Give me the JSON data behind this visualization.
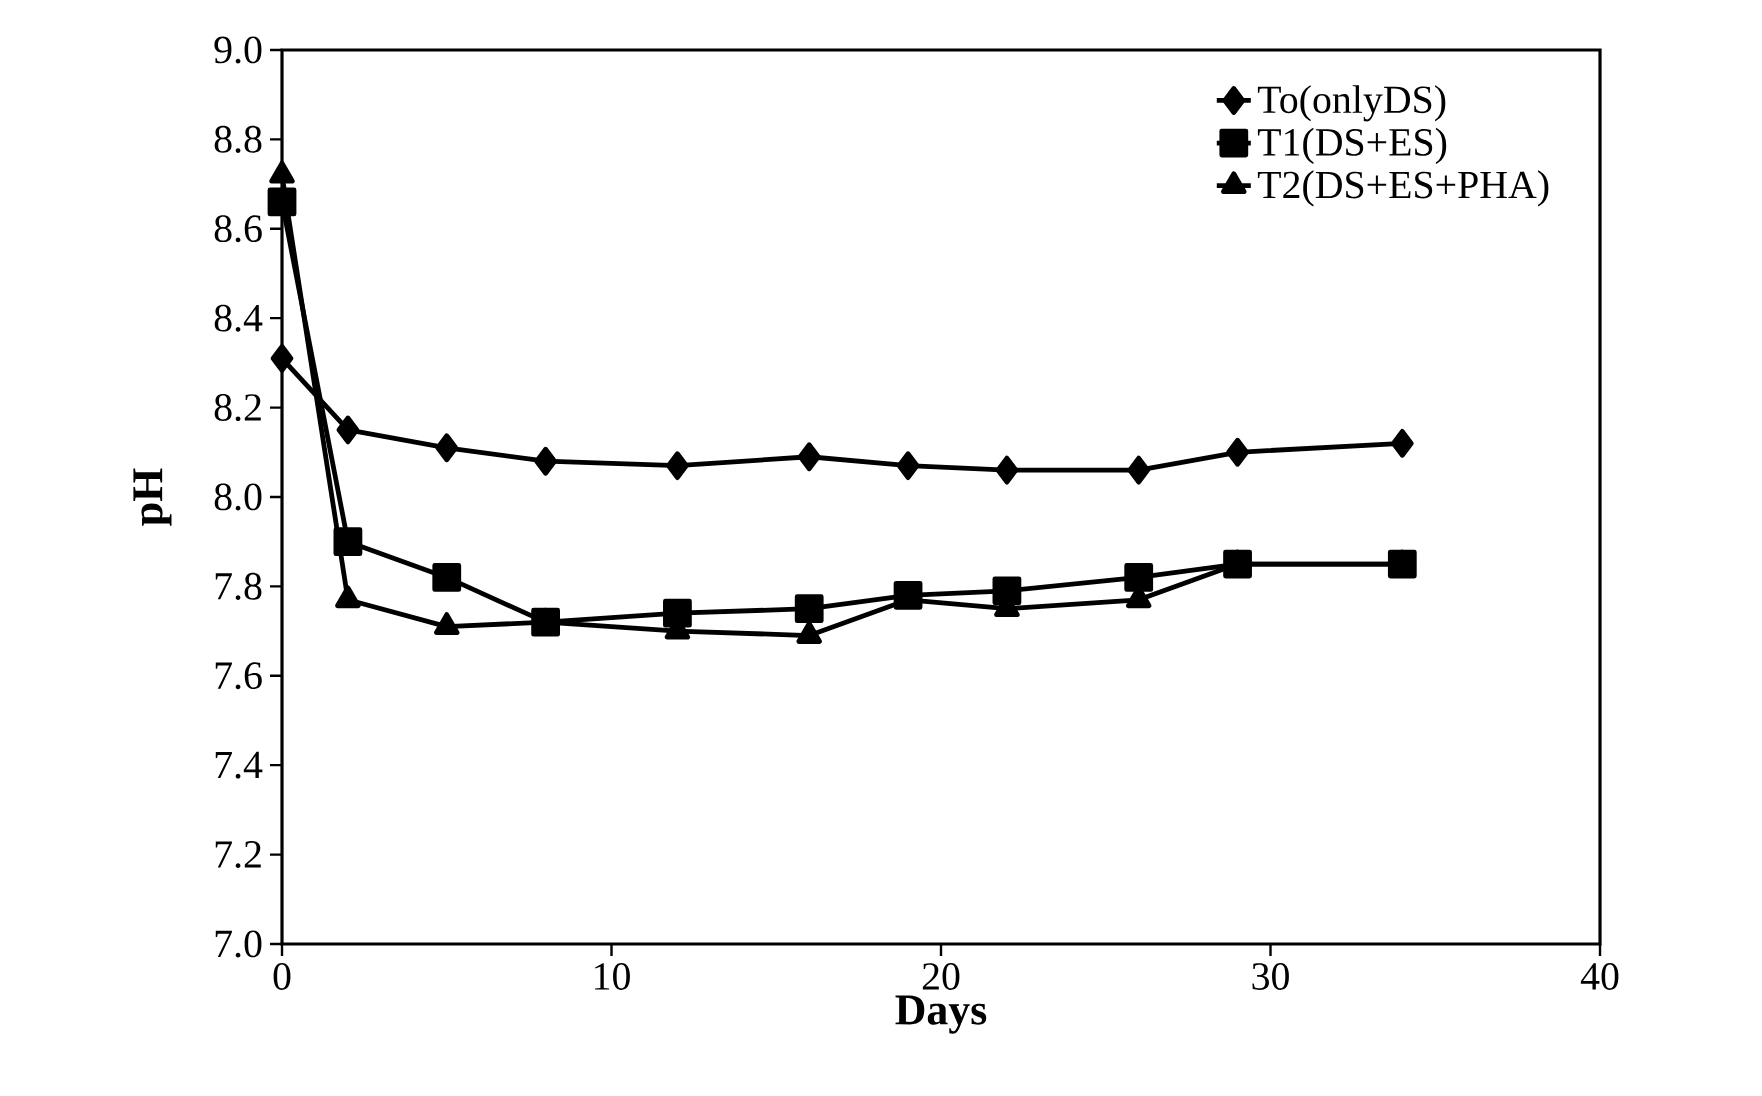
{
  "chart_data": {
    "type": "line",
    "xlabel": "Days",
    "ylabel": "pH",
    "x": [
      0,
      2,
      5,
      8,
      12,
      16,
      19,
      22,
      26,
      29,
      34
    ],
    "series": [
      {
        "name": "To(onlyDS)",
        "color": "#000000",
        "marker": "diamond",
        "values": [
          8.31,
          8.15,
          8.11,
          8.08,
          8.07,
          8.09,
          8.07,
          8.06,
          8.06,
          8.1,
          8.12
        ]
      },
      {
        "name": "T1(DS+ES)",
        "color": "#000000",
        "marker": "square",
        "values": [
          8.66,
          7.9,
          7.82,
          7.72,
          7.74,
          7.75,
          7.78,
          7.79,
          7.82,
          7.85,
          7.85
        ]
      },
      {
        "name": "T2(DS+ES+PHA)",
        "color": "#000000",
        "marker": "triangle",
        "values": [
          8.72,
          7.77,
          7.71,
          7.72,
          7.7,
          7.69,
          7.77,
          7.75,
          7.77,
          7.85,
          7.85
        ]
      }
    ],
    "xlim": [
      0,
      40
    ],
    "xticks": [
      0,
      10,
      20,
      30,
      40
    ],
    "ylim": [
      7.0,
      9.0
    ],
    "yticks": [
      {
        "value": 7.0,
        "label": "7.0"
      },
      {
        "value": 7.2,
        "label": "7.2"
      },
      {
        "value": 7.4,
        "label": "7.4"
      },
      {
        "value": 7.6,
        "label": "7.6"
      },
      {
        "value": 7.8,
        "label": "7.8"
      },
      {
        "value": 8.0,
        "label": "8.0"
      },
      {
        "value": 8.2,
        "label": "8.2"
      },
      {
        "value": 8.4,
        "label": "8.4"
      },
      {
        "value": 8.6,
        "label": "8.6"
      },
      {
        "value": 8.8,
        "label": "8.8"
      },
      {
        "value": 9.0,
        "label": "9.0"
      }
    ],
    "grid": false,
    "legend": "top right",
    "line_style": "solid"
  }
}
